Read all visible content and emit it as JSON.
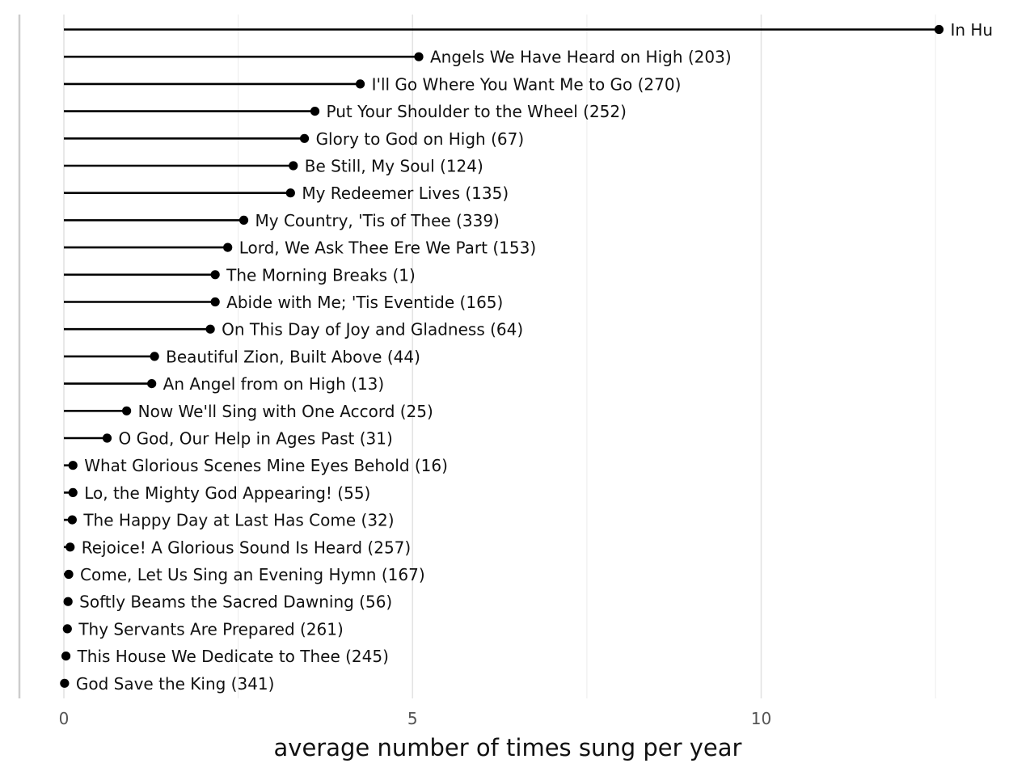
{
  "chart_data": {
    "type": "lollipop",
    "orientation": "horizontal",
    "xlabel": "average number of times sung per year",
    "ylabel": "",
    "title": "",
    "xlim": [
      0,
      13.2
    ],
    "x_ticks": [
      0,
      5,
      10
    ],
    "x_minor_ticks": [
      2.5,
      7.5,
      12.5
    ],
    "grid": true,
    "legend": "none",
    "color": "#000000",
    "items": [
      {
        "label": "In Hu",
        "value": 12.55
      },
      {
        "label": "Angels We Have Heard on High (203)",
        "value": 5.09
      },
      {
        "label": "I'll Go Where You Want Me to Go (270)",
        "value": 4.25
      },
      {
        "label": "Put Your Shoulder to the Wheel (252)",
        "value": 3.6
      },
      {
        "label": "Glory to God on High (67)",
        "value": 3.45
      },
      {
        "label": "Be Still, My Soul (124)",
        "value": 3.29
      },
      {
        "label": "My Redeemer Lives (135)",
        "value": 3.25
      },
      {
        "label": "My Country, 'Tis of Thee (339)",
        "value": 2.58
      },
      {
        "label": "Lord, We Ask Thee Ere We Part (153)",
        "value": 2.35
      },
      {
        "label": "The Morning Breaks (1)",
        "value": 2.17
      },
      {
        "label": "Abide with Me; 'Tis Eventide (165)",
        "value": 2.17
      },
      {
        "label": "On This Day of Joy and Gladness (64)",
        "value": 2.1
      },
      {
        "label": "Beautiful Zion, Built Above (44)",
        "value": 1.3
      },
      {
        "label": "An Angel from on High (13)",
        "value": 1.26
      },
      {
        "label": "Now We'll Sing with One Accord (25)",
        "value": 0.9
      },
      {
        "label": "O God, Our Help in Ages Past (31)",
        "value": 0.62
      },
      {
        "label": "What Glorious Scenes Mine Eyes Behold (16)",
        "value": 0.13
      },
      {
        "label": "Lo, the Mighty God Appearing! (55)",
        "value": 0.13
      },
      {
        "label": "The Happy Day at Last Has Come (32)",
        "value": 0.12
      },
      {
        "label": "Rejoice! A Glorious Sound Is Heard (257)",
        "value": 0.09
      },
      {
        "label": "Come, Let Us Sing an Evening Hymn (167)",
        "value": 0.07
      },
      {
        "label": "Softly Beams the Sacred Dawning (56)",
        "value": 0.06
      },
      {
        "label": "Thy Servants Are Prepared (261)",
        "value": 0.05
      },
      {
        "label": "This House We Dedicate to Thee (245)",
        "value": 0.03
      },
      {
        "label": "God Save the King (341)",
        "value": 0.01
      }
    ]
  }
}
